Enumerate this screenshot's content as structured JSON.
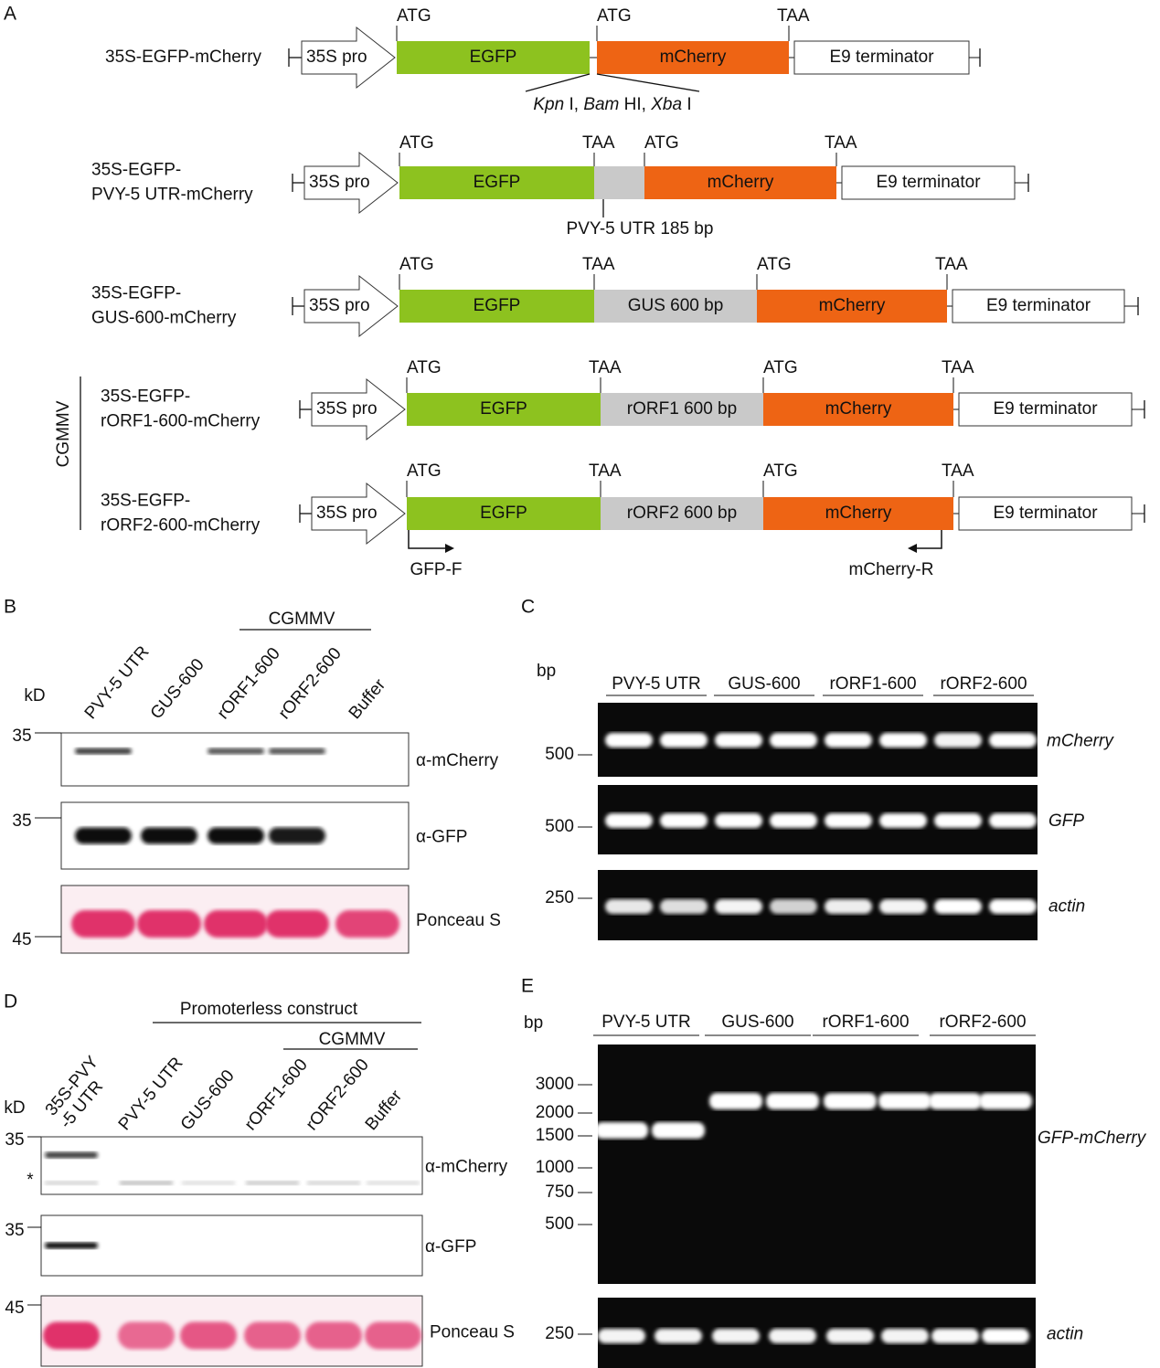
{
  "panel_a": {
    "label": "A",
    "constructs": [
      {
        "name_lines": [
          "35S-EGFP-mCherry"
        ],
        "promoter": "35S pro",
        "segments": [
          {
            "type": "egfp",
            "label": "EGFP"
          },
          {
            "type": "mcherry",
            "label": "mCherry"
          }
        ],
        "terminator": "E9 terminator",
        "codons": [
          "ATG",
          "ATG",
          "TAA"
        ]
      },
      {
        "name_lines": [
          "35S-EGFP-",
          "PVY-5 UTR-mCherry"
        ],
        "promoter": "35S pro",
        "segments": [
          {
            "type": "egfp",
            "label": "EGFP"
          },
          {
            "type": "spacer",
            "label": ""
          },
          {
            "type": "mcherry",
            "label": "mCherry"
          }
        ],
        "terminator": "E9 terminator",
        "codons": [
          "ATG",
          "TAA",
          "ATG",
          "TAA"
        ]
      },
      {
        "name_lines": [
          "35S-EGFP-",
          "GUS-600-mCherry"
        ],
        "promoter": "35S pro",
        "segments": [
          {
            "type": "egfp",
            "label": "EGFP"
          },
          {
            "type": "spacer",
            "label": "GUS 600 bp"
          },
          {
            "type": "mcherry",
            "label": "mCherry"
          }
        ],
        "terminator": "E9 terminator",
        "codons": [
          "ATG",
          "TAA",
          "ATG",
          "TAA"
        ]
      },
      {
        "name_lines": [
          "35S-EGFP-",
          "rORF1-600-mCherry"
        ],
        "promoter": "35S pro",
        "segments": [
          {
            "type": "egfp",
            "label": "EGFP"
          },
          {
            "type": "spacer",
            "label": "rORF1 600 bp"
          },
          {
            "type": "mcherry",
            "label": "mCherry"
          }
        ],
        "terminator": "E9 terminator",
        "codons": [
          "ATG",
          "TAA",
          "ATG",
          "TAA"
        ]
      },
      {
        "name_lines": [
          "35S-EGFP-",
          "rORF2-600-mCherry"
        ],
        "promoter": "35S pro",
        "segments": [
          {
            "type": "egfp",
            "label": "EGFP"
          },
          {
            "type": "spacer",
            "label": "rORF2 600 bp"
          },
          {
            "type": "mcherry",
            "label": "mCherry"
          }
        ],
        "terminator": "E9 terminator",
        "codons": [
          "ATG",
          "TAA",
          "ATG",
          "TAA"
        ]
      }
    ],
    "restriction_sites": [
      {
        "text": "Kpn",
        "italic": true
      },
      {
        "text": " I, ",
        "italic": false
      },
      {
        "text": "Bam",
        "italic": true
      },
      {
        "text": " HI, ",
        "italic": false
      },
      {
        "text": "Xba",
        "italic": true
      },
      {
        "text": " I",
        "italic": false
      }
    ],
    "spacer_note": "PVY-5 UTR 185 bp",
    "group_label": "CGMMV",
    "primer_forward": "GFP-F",
    "primer_reverse": "mCherry-R",
    "colors": {
      "egfp": "#8dc21f",
      "mcherry": "#ee6414",
      "spacer": "#c9c9c9"
    }
  },
  "panel_b": {
    "label": "B",
    "group_label": "CGMMV",
    "unit": "kD",
    "lanes": [
      "PVY-5 UTR",
      "GUS-600",
      "rORF1-600",
      "rORF2-600",
      "Buffer"
    ],
    "blots": [
      {
        "antibody": "α-mCherry",
        "marker": "35",
        "kind": "western",
        "bands": [
          0.8,
          0,
          0.7,
          0.7,
          0
        ]
      },
      {
        "antibody": "α-GFP",
        "marker": "35",
        "kind": "western",
        "bands": [
          1,
          1,
          1,
          0.95,
          0
        ]
      },
      {
        "antibody": "Ponceau S",
        "marker": "45",
        "kind": "ponceau",
        "bands": [
          1,
          1,
          1,
          1,
          0.9
        ]
      }
    ]
  },
  "panel_c": {
    "label": "C",
    "unit": "bp",
    "groups": [
      "PVY-5 UTR",
      "GUS-600",
      "rORF1-600",
      "rORF2-600"
    ],
    "gels": [
      {
        "gene": "mCherry",
        "marker": "500",
        "bands": [
          1,
          1,
          1,
          1,
          1,
          1,
          0.9,
          1
        ]
      },
      {
        "gene": "GFP",
        "marker": "500",
        "bands": [
          1,
          1,
          1,
          1,
          1,
          1,
          1,
          1
        ]
      },
      {
        "gene": "actin",
        "marker": "250",
        "bands": [
          0.8,
          0.7,
          0.9,
          0.6,
          0.85,
          0.9,
          1,
          1
        ]
      }
    ]
  },
  "panel_d": {
    "label": "D",
    "header": "Promoterless construct",
    "group_label": "CGMMV",
    "unit": "kD",
    "asterisk": "*",
    "lanes": [
      [
        "35S-PVY",
        "-5 UTR"
      ],
      [
        "PVY-5 UTR"
      ],
      [
        "GUS-600"
      ],
      [
        "rORF1-600"
      ],
      [
        "rORF2-600"
      ],
      [
        "Buffer"
      ]
    ],
    "blots": [
      {
        "antibody": "α-mCherry",
        "marker": "35",
        "kind": "western",
        "bands": [
          0.8,
          0,
          0,
          0,
          0,
          0
        ],
        "faint": [
          0.2,
          0.3,
          0.15,
          0.25,
          0.2,
          0.15
        ]
      },
      {
        "antibody": "α-GFP",
        "marker": "35",
        "kind": "western",
        "bands": [
          1,
          0,
          0,
          0,
          0,
          0
        ]
      },
      {
        "antibody": "Ponceau S",
        "marker": "45",
        "kind": "ponceau",
        "bands": [
          1,
          0.7,
          0.8,
          0.75,
          0.75,
          0.75
        ]
      }
    ]
  },
  "panel_e": {
    "label": "E",
    "unit": "bp",
    "groups": [
      "PVY-5 UTR",
      "GUS-600",
      "rORF1-600",
      "rORF2-600"
    ],
    "ladder": [
      "3000",
      "2000",
      "1500",
      "1000",
      "750",
      "500"
    ],
    "product_gene": "GFP-mCherry",
    "product_sizes": [
      "1500-2000",
      "1500-2000",
      "2000-3000",
      "2000-3000",
      "2000-3000",
      "2000-3000",
      "2000-3000",
      "2000-3000"
    ],
    "actin_gel": {
      "gene": "actin",
      "marker": "250",
      "bands": [
        0.9,
        0.9,
        0.9,
        0.9,
        0.9,
        0.9,
        0.95,
        1
      ]
    }
  }
}
